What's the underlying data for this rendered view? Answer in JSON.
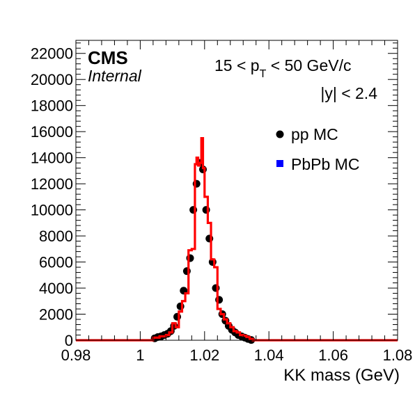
{
  "chart_data": {
    "type": "histogram",
    "xlabel": "KK mass (GeV)",
    "ylabel": "",
    "xlim": [
      0.98,
      1.08
    ],
    "ylim": [
      0,
      23000
    ],
    "x_ticks": [
      "0.98",
      "1",
      "1.02",
      "1.04",
      "1.06",
      "1.08"
    ],
    "y_ticks": [
      "0",
      "2000",
      "4000",
      "6000",
      "8000",
      "10000",
      "12000",
      "14000",
      "16000",
      "18000",
      "20000",
      "22000"
    ],
    "experiment": "CMS",
    "status": "Internal",
    "annotations": {
      "pt_prefix": "15 < p",
      "pt_sub": "T",
      "pt_suffix": " < 50 GeV/c",
      "rapidity": "|y| < 2.4"
    },
    "grid": false,
    "legend_position": "top-right",
    "series": [
      {
        "name": "pp MC",
        "style": "markers",
        "color": "#000000",
        "x": [
          1.0045,
          1.0055,
          1.0065,
          1.0075,
          1.0085,
          1.0095,
          1.0105,
          1.0115,
          1.0125,
          1.0135,
          1.0145,
          1.0155,
          1.0165,
          1.0175,
          1.0185,
          1.0195,
          1.0205,
          1.0215,
          1.0225,
          1.0235,
          1.0245,
          1.0255,
          1.0265,
          1.0275,
          1.0285,
          1.0295,
          1.0305,
          1.0315,
          1.0325,
          1.0335,
          1.0345
        ],
        "y": [
          150,
          250,
          300,
          400,
          500,
          700,
          1100,
          1800,
          2600,
          3800,
          5300,
          6300,
          10000,
          12000,
          13600,
          13100,
          10000,
          7800,
          6000,
          4000,
          3100,
          2000,
          1500,
          1100,
          800,
          600,
          400,
          300,
          200,
          100,
          20
        ]
      },
      {
        "name": "PbPb MC",
        "style": "step",
        "color": "#ff0000",
        "legend_marker_color": "#0000ff",
        "edges": [
          0.98,
          1.004,
          1.006,
          1.008,
          1.009,
          1.01,
          1.011,
          1.012,
          1.013,
          1.014,
          1.015,
          1.016,
          1.017,
          1.0175,
          1.018,
          1.0185,
          1.019,
          1.0195,
          1.02,
          1.021,
          1.022,
          1.023,
          1.024,
          1.025,
          1.026,
          1.027,
          1.028,
          1.029,
          1.03,
          1.031,
          1.032,
          1.033,
          1.034,
          1.035,
          1.08
        ],
        "values": [
          0,
          200,
          300,
          400,
          600,
          1300,
          1000,
          2200,
          3000,
          3600,
          6900,
          7000,
          13500,
          14000,
          13400,
          13600,
          15500,
          13200,
          11000,
          9000,
          6200,
          5600,
          2400,
          2000,
          1600,
          1300,
          1000,
          700,
          600,
          400,
          350,
          250,
          100,
          0
        ]
      }
    ]
  }
}
